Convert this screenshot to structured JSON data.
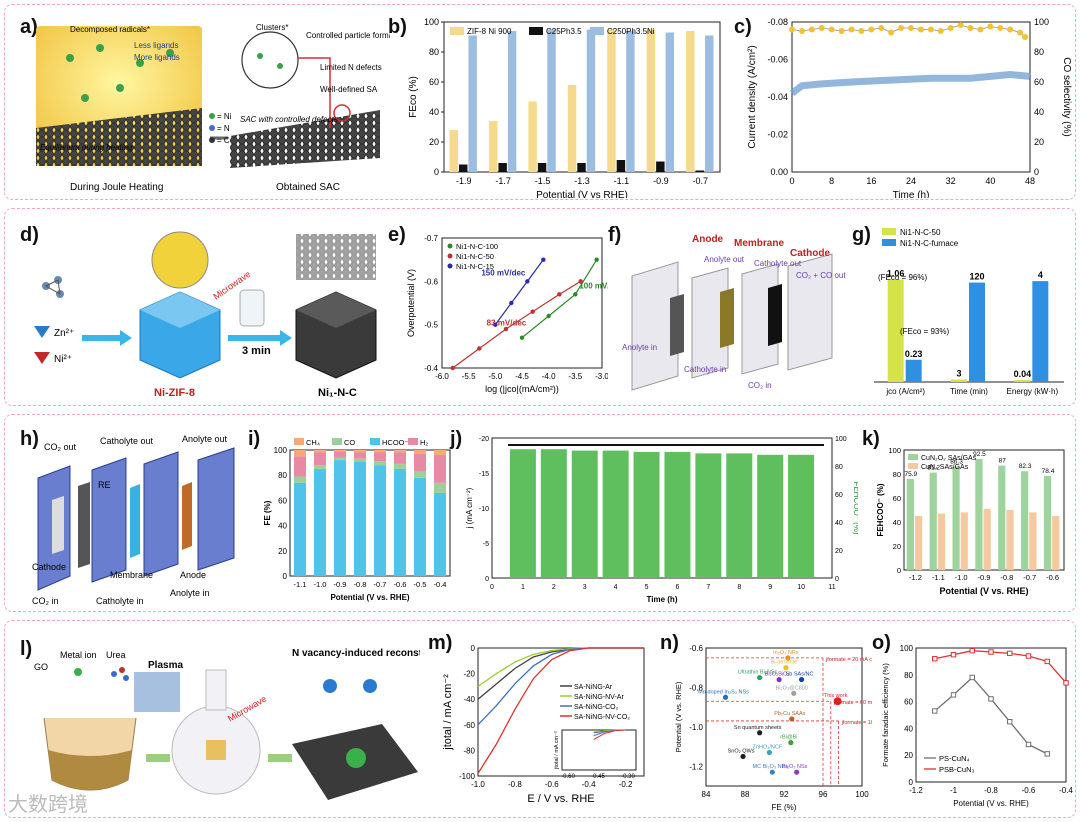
{
  "figure": {
    "watermark": "大数跨境",
    "labels": {
      "a": "a)",
      "b": "b)",
      "c": "c)",
      "d": "d)",
      "e": "e)",
      "f": "f)",
      "g": "g)",
      "h": "h)",
      "i": "i)",
      "j": "j)",
      "k": "k)",
      "l": "l)",
      "m": "m)",
      "n": "n)",
      "o": "o)"
    }
  },
  "panel_a": {
    "left_caption": "During Joule Heating",
    "right_caption": "Obtained SAC",
    "notes": [
      "Decomposed radicals*",
      "Less ligands",
      "More ligands",
      "Clusters*",
      "Controlled particle formation",
      "Limited N defects",
      "Well-defined SA",
      "Equilibrium during heating",
      "SAC with controlled defects"
    ],
    "legend": [
      "= Ni",
      "= N",
      "= C"
    ]
  },
  "panel_d": {
    "zn": "Zn²⁺",
    "ni": "Ni²⁺",
    "microwave": "Microwave",
    "time": "3 min",
    "left_name": "Ni-ZIF-8",
    "right_name": "Ni₁-N-C"
  },
  "panel_f": {
    "labels": [
      "Anode",
      "Membrane",
      "Cathode",
      "Anolyte out",
      "Catholyte out",
      "CO₂ + CO out",
      "Anolyte in",
      "Catholyte in",
      "CO₂ in"
    ]
  },
  "panel_h": {
    "labels": [
      "CO₂ out",
      "Catholyte out",
      "Anolyte out",
      "RE",
      "Cathode",
      "Membrane",
      "Anode",
      "CO₂ in",
      "Catholyte in",
      "Anolyte in"
    ]
  },
  "panel_l": {
    "labels": [
      "GO",
      "Metal ion",
      "Urea",
      "Plasma",
      "Microwave",
      "N vacancy-induced reconstruction"
    ]
  },
  "chart_data": [
    {
      "id": "b",
      "type": "bar",
      "xlabel": "Potential (V vs RHE)",
      "ylabel": "FEco (%)",
      "categories": [
        "-1.9",
        "-1.7",
        "-1.5",
        "-1.3",
        "-1.1",
        "-0.9",
        "-0.7"
      ],
      "ylim": [
        0,
        100
      ],
      "yticks": [
        0,
        20,
        40,
        60,
        80,
        100
      ],
      "series": [
        {
          "name": "ZIF-8 Ni 900",
          "color": "#f5d98c",
          "values": [
            28,
            34,
            47,
            58,
            95,
            95,
            94
          ]
        },
        {
          "name": "C25Ph3.5",
          "color": "#111111",
          "values": [
            5,
            6,
            6,
            6,
            8,
            7,
            1
          ]
        },
        {
          "name": "C250Ph3.5Ni",
          "color": "#9dbde0",
          "values": [
            91,
            94,
            95,
            95,
            94,
            93,
            91
          ]
        }
      ]
    },
    {
      "id": "c",
      "type": "line",
      "xlabel": "Time (h)",
      "ylabel": "Current density (A/cm²)",
      "y2label": "CO selectivity (%)",
      "xlim": [
        0,
        48
      ],
      "xticks": [
        0,
        8,
        16,
        24,
        32,
        40,
        48
      ],
      "ylim": [
        0,
        -0.08
      ],
      "yticks": [
        "0.00",
        "-0.02",
        "-0.04",
        "-0.06",
        "-0.08"
      ],
      "y2ticks": [
        "0",
        "20",
        "40",
        "60",
        "80",
        "100"
      ],
      "series": [
        {
          "name": "Current density",
          "color": "#6d9dd0",
          "x": [
            0,
            2,
            6,
            12,
            20,
            28,
            36,
            44,
            48
          ],
          "y": [
            -0.042,
            -0.046,
            -0.047,
            -0.048,
            -0.049,
            -0.05,
            -0.05,
            -0.052,
            -0.051
          ]
        },
        {
          "name": "CO selectivity",
          "color": "#f1c232",
          "x": [
            0,
            2,
            4,
            6,
            8,
            10,
            12,
            14,
            16,
            18,
            20,
            22,
            24,
            26,
            28,
            30,
            32,
            34,
            36,
            38,
            40,
            42,
            44,
            46,
            47
          ],
          "y": [
            95,
            94,
            95,
            96,
            95,
            94,
            95,
            94,
            95,
            96,
            93,
            96,
            96,
            95,
            95,
            94,
            96,
            98,
            96,
            95,
            97,
            96,
            95,
            93,
            90
          ]
        }
      ]
    },
    {
      "id": "e",
      "type": "line",
      "xlabel": "log (|jco|(mA/cm²))",
      "ylabel": "Overpotential (V)",
      "xlim": [
        -6.0,
        -3.0
      ],
      "xticks": [
        "-6.0",
        "-5.5",
        "-5.0",
        "-4.5",
        "-4.0",
        "-3.5",
        "-3.0"
      ],
      "ylim": [
        -0.4,
        -0.7
      ],
      "yticks": [
        "-0.4",
        "-0.5",
        "-0.6",
        "-0.7"
      ],
      "series": [
        {
          "name": "Ni1-N-C-100",
          "color": "#2a8a2a",
          "slope": "100 mV/dec",
          "x": [
            -4.5,
            -4.0,
            -3.5,
            -3.1
          ],
          "y": [
            -0.47,
            -0.52,
            -0.57,
            -0.65
          ]
        },
        {
          "name": "Ni1-N-C-50",
          "color": "#c03030",
          "slope": "83 mV/dec",
          "x": [
            -5.8,
            -5.3,
            -4.8,
            -4.3,
            -3.8,
            -3.4
          ],
          "y": [
            -0.4,
            -0.445,
            -0.49,
            -0.53,
            -0.57,
            -0.6
          ]
        },
        {
          "name": "Ni1-N-C-15",
          "color": "#2a2ab0",
          "slope": "150 mV/dec",
          "x": [
            -5.0,
            -4.7,
            -4.4,
            -4.1
          ],
          "y": [
            -0.5,
            -0.55,
            -0.6,
            -0.65
          ]
        }
      ]
    },
    {
      "id": "g",
      "type": "bar",
      "categories": [
        "jco (A/cm²)",
        "Time (min)",
        "Energy (kW·h)"
      ],
      "series": [
        {
          "name": "Ni1-N-C-50",
          "color": "#d6e24a",
          "values": [
            1.06,
            3,
            0.04
          ],
          "labels": [
            "1.06",
            "3",
            "0.04"
          ]
        },
        {
          "name": "Ni1-N-C-furnace",
          "color": "#2f8fe0",
          "values": [
            0.23,
            120,
            4
          ],
          "labels": [
            "0.23",
            "120",
            "4"
          ]
        }
      ],
      "annotations": [
        "(FEco = 96%)",
        "(FEco = 93%)"
      ]
    },
    {
      "id": "i",
      "type": "bar",
      "stacked": true,
      "xlabel": "Potential (V vs. RHE)",
      "ylabel": "FE (%)",
      "categories": [
        "-1.1",
        "-1.0",
        "-0.9",
        "-0.8",
        "-0.7",
        "-0.6",
        "-0.5",
        "-0.4"
      ],
      "ylim": [
        0,
        100
      ],
      "yticks": [
        0,
        20,
        40,
        60,
        80,
        100
      ],
      "series": [
        {
          "name": "HCOO⁻",
          "color": "#4fc3e8",
          "values": [
            74,
            85,
            92,
            91,
            88,
            85,
            78,
            66
          ]
        },
        {
          "name": "CO",
          "color": "#9ad09a",
          "values": [
            5,
            3,
            2,
            2,
            3,
            4,
            5,
            8
          ]
        },
        {
          "name": "H₂",
          "color": "#e88aa6",
          "values": [
            16,
            10,
            5,
            5,
            7,
            9,
            14,
            22
          ]
        },
        {
          "name": "CH₄",
          "color": "#f5a878",
          "values": [
            5,
            2,
            1,
            2,
            2,
            2,
            3,
            4
          ]
        }
      ]
    },
    {
      "id": "j",
      "type": "bar",
      "xlabel": "Time (h)",
      "ylabel": "j (mA cm⁻²)",
      "y2label": "FEHCOO⁻ (%)",
      "categories": [
        "1",
        "2",
        "3",
        "4",
        "5",
        "6",
        "7",
        "8",
        "9",
        "10"
      ],
      "xticks": [
        "0",
        "1",
        "2",
        "3",
        "4",
        "5",
        "6",
        "7",
        "8",
        "9",
        "10",
        "11"
      ],
      "ylim": [
        0,
        -20
      ],
      "yticks": [
        "0",
        "-5",
        "-10",
        "-15",
        "-20"
      ],
      "y2ticks": [
        "0",
        "20",
        "40",
        "60",
        "80",
        "100"
      ],
      "series": [
        {
          "name": "FEHCOO⁻",
          "color": "#5fbf5f",
          "values": [
            92,
            92,
            91,
            91,
            90,
            90,
            89,
            89,
            88,
            88
          ]
        }
      ],
      "current": -19
    },
    {
      "id": "k",
      "type": "bar",
      "xlabel": "Potential (V vs. RHE)",
      "ylabel": "FEHCOO⁻ (%)",
      "categories": [
        "-1.2",
        "-1.1",
        "-1.0",
        "-0.9",
        "-0.8",
        "-0.7",
        "-0.6"
      ],
      "ylim": [
        0,
        100
      ],
      "yticks": [
        0,
        20,
        40,
        60,
        80,
        100
      ],
      "series": [
        {
          "name": "CuN₂O₂ SAs/GAs",
          "color": "#9ed39e",
          "values": [
            75.9,
            81.2,
            86.3,
            92.5,
            87,
            82.3,
            78.4
          ],
          "labels": [
            "75.9",
            "81.2",
            "86.3",
            "92.5",
            "87",
            "82.3",
            "78.4"
          ]
        },
        {
          "name": "CuN₄ SAs/GAs",
          "color": "#f5c9a0",
          "values": [
            45,
            47,
            48,
            51,
            50,
            48,
            45
          ]
        }
      ]
    },
    {
      "id": "m",
      "type": "line",
      "xlabel": "E / V vs. RHE",
      "ylabel": "jtotal / mA cm⁻²",
      "xlim": [
        -1.0,
        -0.1
      ],
      "xticks": [
        "-1.0",
        "-0.8",
        "-0.6",
        "-0.4",
        "-0.2"
      ],
      "ylim": [
        -100,
        0
      ],
      "yticks": [
        "0",
        "-20",
        "-40",
        "-60",
        "-80",
        "-100"
      ],
      "inset": {
        "xticks": [
          "-0.60",
          "-0.45",
          "-0.30"
        ],
        "ylabel": "jtotal / mA cm⁻²"
      },
      "series": [
        {
          "name": "SA-NiNG-Ar",
          "color": "#404040",
          "x": [
            -1.0,
            -0.9,
            -0.8,
            -0.7,
            -0.6,
            -0.5,
            -0.4
          ],
          "y": [
            -40,
            -28,
            -16,
            -7,
            -3,
            -1,
            0
          ]
        },
        {
          "name": "SA-NiNG-NV-Ar",
          "color": "#9acd32",
          "x": [
            -1.0,
            -0.9,
            -0.8,
            -0.7,
            -0.6,
            -0.5,
            -0.4
          ],
          "y": [
            -30,
            -20,
            -11,
            -5,
            -2,
            -0.5,
            0
          ]
        },
        {
          "name": "SA-NiNG-CO₂",
          "color": "#3c6fd0",
          "x": [
            -1.0,
            -0.9,
            -0.8,
            -0.7,
            -0.6,
            -0.5,
            -0.4
          ],
          "y": [
            -60,
            -45,
            -28,
            -14,
            -5,
            -1,
            0
          ]
        },
        {
          "name": "SA-NiNG-NV-CO₂",
          "color": "#e03030",
          "x": [
            -1.0,
            -0.9,
            -0.8,
            -0.7,
            -0.6,
            -0.5,
            -0.4
          ],
          "y": [
            -98,
            -75,
            -48,
            -24,
            -9,
            -2,
            0
          ]
        }
      ]
    },
    {
      "id": "n",
      "type": "scatter",
      "xlabel": "FE (%)",
      "ylabel": "Potential (V vs. RHE)",
      "xlim": [
        84,
        100
      ],
      "xticks": [
        "84",
        "88",
        "92",
        "96",
        "100"
      ],
      "ylim": [
        -1.3,
        -0.6
      ],
      "yticks": [
        "-0.6",
        "-0.8",
        "-1.0",
        "-1.2"
      ],
      "points": [
        {
          "label": "In₂O₃ NRs",
          "x": 92.4,
          "y": -0.65,
          "color": "#e89020"
        },
        {
          "label": "Bi-dendrite",
          "x": 92.2,
          "y": -0.7,
          "color": "#e8c020"
        },
        {
          "label": "Ultrathin Bi₂NSs",
          "x": 89.5,
          "y": -0.75,
          "color": "#30a060"
        },
        {
          "label": "Bi₂O₂BiO₂",
          "x": 91.5,
          "y": -0.76,
          "color": "#8030c0"
        },
        {
          "label": "Sb SAs/NC",
          "x": 93.8,
          "y": -0.76,
          "color": "#1040a0"
        },
        {
          "label": "Mn-doped In₂S₃ NSs",
          "x": 86.0,
          "y": -0.85,
          "color": "#2070c0"
        },
        {
          "label": "Bi₂O₃@C800",
          "x": 93.0,
          "y": -0.83,
          "color": "#a0a0a0"
        },
        {
          "label": "This work",
          "x": 97.5,
          "y": -0.87,
          "color": "#e02020"
        },
        {
          "label": "Pb₂Cu SAAs",
          "x": 92.8,
          "y": -0.96,
          "color": "#c06020"
        },
        {
          "label": "Sn quantum sheets",
          "x": 89.5,
          "y": -1.03,
          "color": "#202020"
        },
        {
          "label": "SnO₂ QWs",
          "x": 87.8,
          "y": -1.15,
          "color": "#202020"
        },
        {
          "label": "ZnHO₂/NCF",
          "x": 90.5,
          "y": -1.13,
          "color": "#40a0c0"
        },
        {
          "label": "MC Bi₂O₃ NPs",
          "x": 90.8,
          "y": -1.23,
          "color": "#4080c0"
        },
        {
          "label": "Bi₂O₃ NSs",
          "x": 93.3,
          "y": -1.23,
          "color": "#8040c0"
        },
        {
          "label": "rBi@Bi",
          "x": 92.7,
          "y": -1.08,
          "color": "#40a040"
        }
      ],
      "annotations": [
        "jformate = 20 mA cm⁻²",
        "jformate = 60 mA cm⁻²",
        "jformate = 100 mA cm⁻²"
      ]
    },
    {
      "id": "o",
      "type": "line",
      "xlabel": "Potential (V vs. RHE)",
      "ylabel": "Formate faradaic efficiency (%)",
      "xlim": [
        -1.2,
        -0.4
      ],
      "xticks": [
        "-1.2",
        "-1",
        "-0.8",
        "-0.6",
        "-0.4"
      ],
      "ylim": [
        0,
        100
      ],
      "yticks": [
        "0",
        "20",
        "40",
        "60",
        "80",
        "100"
      ],
      "series": [
        {
          "name": "PS-CuN₄",
          "color": "#707070",
          "x": [
            -1.1,
            -1.0,
            -0.9,
            -0.8,
            -0.7,
            -0.6,
            -0.5
          ],
          "y": [
            53,
            65,
            78,
            62,
            45,
            28,
            21
          ]
        },
        {
          "name": "PSB-CuN₃",
          "color": "#e03030",
          "x": [
            -1.1,
            -1.0,
            -0.9,
            -0.8,
            -0.7,
            -0.6,
            -0.5,
            -0.4
          ],
          "y": [
            92,
            95,
            98,
            97,
            96,
            94,
            90,
            74
          ]
        }
      ]
    }
  ]
}
